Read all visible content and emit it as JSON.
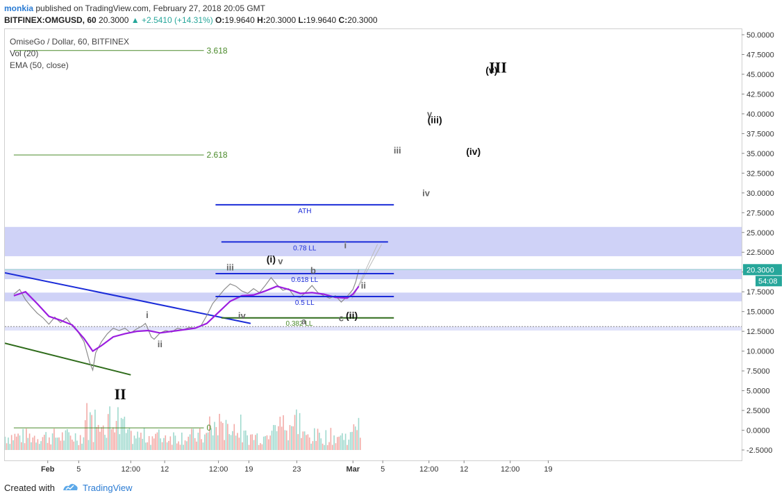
{
  "header": {
    "user": "monkia",
    "published_text": " published on TradingView.com, February 27, 2018 20:05 GMT",
    "symbol": "BITFINEX:OMGUSD, 60",
    "last": " 20.3000 ",
    "change": "▲ +2.5410 (+14.31%)",
    "o_label": " O:",
    "o_val": "19.9640",
    "h_label": " H:",
    "h_val": "20.3000",
    "l_label": " L:",
    "l_val": "19.9640",
    "c_label": " C:",
    "c_val": "20.3000"
  },
  "legend": {
    "symbol": "OmiseGo / Dollar, 60, BITFINEX",
    "vol": "Vol (20)",
    "ema": "EMA (50, close)"
  },
  "footer": {
    "created": "Created with",
    "brand": "TradingView"
  },
  "colors": {
    "price": "#8c8c8c",
    "ema": "#9b1ddf",
    "blue_line": "#1a2bd8",
    "green_line": "#2e6b1a",
    "zone": "#c7caf6",
    "vol_up": "#9fd9ce",
    "vol_down": "#f3aaa6"
  },
  "chart_data": {
    "type": "line",
    "y_axis": {
      "min": -2.5,
      "max": 50,
      "ticks": [
        50,
        47.5,
        45,
        42.5,
        40,
        37.5,
        35,
        32.5,
        30,
        27.5,
        25,
        22.5,
        20,
        17.5,
        15,
        12.5,
        10,
        7.5,
        5,
        2.5,
        0,
        -2.5
      ],
      "tick_labels": [
        "50.0000",
        "47.5000",
        "45.0000",
        "42.5000",
        "40.0000",
        "37.5000",
        "35.0000",
        "32.5000",
        "30.0000",
        "27.5000",
        "25.0000",
        "22.5000",
        "20.0000",
        "17.5000",
        "15.0000",
        "12.5000",
        "10.0000",
        "7.5000",
        "5.0000",
        "2.5000",
        "0.0000",
        "-2.5000"
      ]
    },
    "x_axis": {
      "ticks": [
        {
          "t": 0.08,
          "label": "Feb"
        },
        {
          "t": 0.61,
          "label": "5"
        },
        {
          "t": 1.5,
          "label": "12:00"
        },
        {
          "t": 2.08,
          "label": "12"
        },
        {
          "t": 3.0,
          "label": "12:00"
        },
        {
          "t": 3.52,
          "label": "19"
        },
        {
          "t": 4.34,
          "label": "23"
        },
        {
          "t": 5.3,
          "label": "Mar"
        },
        {
          "t": 5.81,
          "label": "5"
        },
        {
          "t": 6.6,
          "label": "12:00"
        },
        {
          "t": 7.2,
          "label": "12"
        },
        {
          "t": 7.99,
          "label": "12:00"
        },
        {
          "t": 8.64,
          "label": "19"
        }
      ]
    },
    "price_series": [
      [
        -0.5,
        17.2
      ],
      [
        -0.4,
        17.8
      ],
      [
        -0.3,
        16.5
      ],
      [
        -0.2,
        15.6
      ],
      [
        -0.1,
        14.8
      ],
      [
        0.0,
        14.2
      ],
      [
        0.1,
        13.4
      ],
      [
        0.2,
        14.3
      ],
      [
        0.3,
        13.6
      ],
      [
        0.4,
        14.2
      ],
      [
        0.5,
        13.2
      ],
      [
        0.6,
        12.4
      ],
      [
        0.7,
        11.2
      ],
      [
        0.8,
        8.5
      ],
      [
        0.85,
        7.6
      ],
      [
        0.9,
        9.8
      ],
      [
        1.0,
        11.2
      ],
      [
        1.1,
        12.2
      ],
      [
        1.2,
        12.9
      ],
      [
        1.3,
        12.6
      ],
      [
        1.4,
        12.9
      ],
      [
        1.5,
        12.3
      ],
      [
        1.6,
        12.8
      ],
      [
        1.7,
        13.2
      ],
      [
        1.75,
        13.5
      ],
      [
        1.8,
        12.7
      ],
      [
        1.85,
        11.8
      ],
      [
        1.9,
        11.5
      ],
      [
        2.0,
        12.3
      ],
      [
        2.1,
        12.6
      ],
      [
        2.2,
        12.4
      ],
      [
        2.3,
        12.9
      ],
      [
        2.4,
        12.7
      ],
      [
        2.5,
        13.0
      ],
      [
        2.6,
        12.9
      ],
      [
        2.7,
        13.2
      ],
      [
        2.8,
        14.5
      ],
      [
        2.9,
        16.0
      ],
      [
        3.0,
        16.9
      ],
      [
        3.1,
        17.8
      ],
      [
        3.2,
        18.5
      ],
      [
        3.3,
        18.2
      ],
      [
        3.4,
        17.6
      ],
      [
        3.5,
        17.3
      ],
      [
        3.6,
        17.9
      ],
      [
        3.7,
        17.4
      ],
      [
        3.8,
        18.3
      ],
      [
        3.9,
        19.3
      ],
      [
        4.0,
        18.4
      ],
      [
        4.1,
        17.7
      ],
      [
        4.2,
        17.9
      ],
      [
        4.3,
        16.9
      ],
      [
        4.4,
        16.8
      ],
      [
        4.5,
        17.5
      ],
      [
        4.6,
        18.3
      ],
      [
        4.7,
        17.4
      ],
      [
        4.8,
        17.0
      ],
      [
        4.9,
        16.7
      ],
      [
        5.0,
        17.0
      ],
      [
        5.1,
        16.2
      ],
      [
        5.2,
        16.9
      ],
      [
        5.3,
        17.8
      ],
      [
        5.35,
        18.8
      ],
      [
        5.4,
        20.3
      ]
    ],
    "ema_series": [
      [
        -0.5,
        17.0
      ],
      [
        -0.3,
        17.5
      ],
      [
        -0.1,
        16.0
      ],
      [
        0.1,
        14.4
      ],
      [
        0.3,
        13.9
      ],
      [
        0.5,
        13.3
      ],
      [
        0.7,
        11.6
      ],
      [
        0.85,
        10.0
      ],
      [
        1.0,
        10.7
      ],
      [
        1.2,
        11.8
      ],
      [
        1.4,
        12.2
      ],
      [
        1.6,
        12.5
      ],
      [
        1.8,
        12.6
      ],
      [
        2.0,
        12.3
      ],
      [
        2.2,
        12.5
      ],
      [
        2.4,
        12.7
      ],
      [
        2.6,
        12.9
      ],
      [
        2.8,
        13.5
      ],
      [
        3.0,
        14.9
      ],
      [
        3.2,
        16.3
      ],
      [
        3.4,
        17.0
      ],
      [
        3.6,
        17.1
      ],
      [
        3.8,
        17.6
      ],
      [
        4.0,
        18.2
      ],
      [
        4.2,
        17.8
      ],
      [
        4.4,
        17.3
      ],
      [
        4.6,
        17.4
      ],
      [
        4.8,
        17.2
      ],
      [
        5.0,
        16.8
      ],
      [
        5.2,
        16.7
      ],
      [
        5.3,
        17.2
      ],
      [
        5.4,
        18.2
      ]
    ],
    "annotations": {
      "fib_levels": [
        {
          "value": 48.0,
          "label": "3.618",
          "t0": -0.5,
          "t1": 2.75
        },
        {
          "value": 34.8,
          "label": "2.618",
          "t0": -0.5,
          "t1": 2.75
        },
        {
          "value": 0.3,
          "label": "0",
          "t0": -0.5,
          "t1": 2.75
        }
      ],
      "blue_levels": [
        {
          "value": 28.5,
          "label": "ATH",
          "t0": 2.95,
          "t1": 6.0
        },
        {
          "value": 23.8,
          "label": "0.78 LL",
          "t0": 3.05,
          "t1": 5.9
        },
        {
          "value": 19.8,
          "label": "0.618 LL",
          "t0": 2.95,
          "t1": 6.0
        },
        {
          "value": 16.9,
          "label": "0.5 LL",
          "t0": 2.95,
          "t1": 6.0
        }
      ],
      "green_levels": [
        {
          "value": 14.2,
          "label": "0.382 LL",
          "t0": 3.05,
          "t1": 6.0
        }
      ],
      "zones": [
        {
          "from": 22.0,
          "to": 25.7
        },
        {
          "from": 19.1,
          "to": 20.4
        },
        {
          "from": 16.3,
          "to": 17.4
        },
        {
          "from": 12.6,
          "to": 13.1
        }
      ],
      "wave_labels": [
        {
          "t": 1.78,
          "v": 14.2,
          "text": "i"
        },
        {
          "t": 2.0,
          "v": 10.5,
          "text": "ii"
        },
        {
          "t": 3.2,
          "v": 20.2,
          "text": "iii"
        },
        {
          "t": 3.4,
          "v": 14.1,
          "text": "iv"
        },
        {
          "t": 3.9,
          "v": 21.2,
          "text": "(i)"
        },
        {
          "t": 4.06,
          "v": 21.0,
          "text": "v"
        },
        {
          "t": 4.62,
          "v": 19.8,
          "text": "b"
        },
        {
          "t": 4.46,
          "v": 13.4,
          "text": "a"
        },
        {
          "t": 5.1,
          "v": 13.8,
          "text": "c"
        },
        {
          "t": 5.28,
          "v": 14.1,
          "text": "(ii)"
        },
        {
          "t": 5.17,
          "v": 23.0,
          "text": "i"
        },
        {
          "t": 5.48,
          "v": 17.9,
          "text": "ii"
        },
        {
          "t": 6.06,
          "v": 35.0,
          "text": "iii"
        },
        {
          "t": 6.55,
          "v": 29.6,
          "text": "iv"
        },
        {
          "t": 6.61,
          "v": 39.6,
          "text": "v"
        },
        {
          "t": 6.7,
          "v": 38.8,
          "text": "(iii)"
        },
        {
          "t": 7.36,
          "v": 34.8,
          "text": "(iv)"
        },
        {
          "t": 7.67,
          "v": 45.1,
          "text": "(v)"
        },
        {
          "t": 7.78,
          "v": 45.2,
          "text": "III"
        },
        {
          "t": 1.32,
          "v": 3.9,
          "text": "II"
        }
      ]
    },
    "last_price_label": "20.3000",
    "countdown_label": "54:08"
  }
}
